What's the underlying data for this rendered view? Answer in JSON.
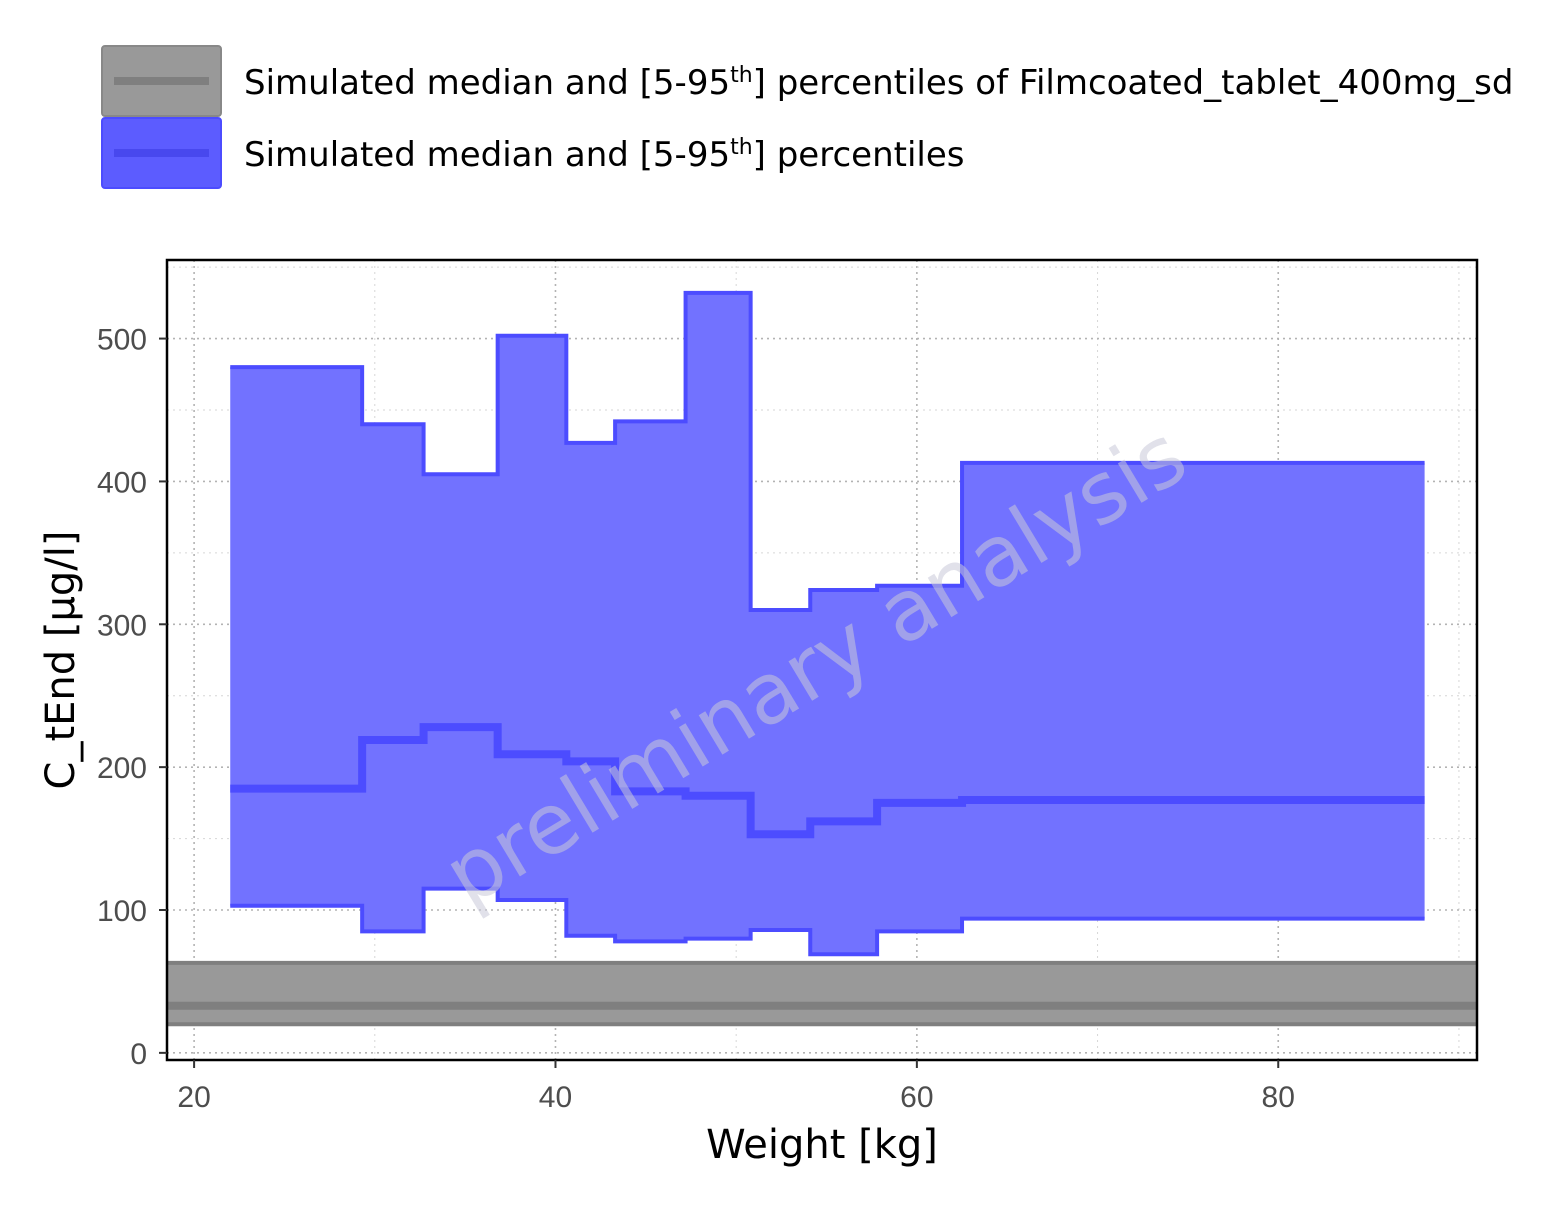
{
  "chart_data": {
    "type": "area",
    "xlabel": "Weight [kg]",
    "ylabel": "C_tEnd [µg/l]",
    "xlim": [
      18.5,
      91
    ],
    "ylim": [
      -5,
      555
    ],
    "x_ticks": [
      "20",
      "40",
      "60",
      "80"
    ],
    "y_ticks": [
      "0",
      "100",
      "200",
      "300",
      "400",
      "500"
    ],
    "grid": true,
    "legend_placement": "top",
    "watermark": "preliminary analysis",
    "legend": [
      {
        "label_parts": [
          "Simulated median and [5-95",
          "th",
          "] percentiles of Filmcoated_tablet_400mg_sd"
        ],
        "color": "#7f7f7f",
        "fill": "#999999"
      },
      {
        "label_parts": [
          "Simulated median and [5-95",
          "th",
          "] percentiles"
        ],
        "color": "#4c4cff",
        "fill": "#7272ff"
      }
    ],
    "series": [
      {
        "name": "Simulated median and [5-95th] percentiles",
        "color": "#4c4cff",
        "fill": "#7272ff",
        "bins": [
          {
            "x_start": 22.0,
            "x_end": 29.3,
            "p5": 103,
            "median": 185,
            "p95": 480
          },
          {
            "x_start": 29.3,
            "x_end": 32.7,
            "p5": 85,
            "median": 219,
            "p95": 440
          },
          {
            "x_start": 32.7,
            "x_end": 36.8,
            "p5": 115,
            "median": 228,
            "p95": 405
          },
          {
            "x_start": 36.8,
            "x_end": 40.6,
            "p5": 107,
            "median": 209,
            "p95": 502
          },
          {
            "x_start": 40.6,
            "x_end": 43.3,
            "p5": 82,
            "median": 204,
            "p95": 427
          },
          {
            "x_start": 43.3,
            "x_end": 47.2,
            "p5": 78,
            "median": 183,
            "p95": 442
          },
          {
            "x_start": 47.2,
            "x_end": 50.8,
            "p5": 80,
            "median": 180,
            "p95": 532
          },
          {
            "x_start": 50.8,
            "x_end": 54.1,
            "p5": 86,
            "median": 153,
            "p95": 310
          },
          {
            "x_start": 54.1,
            "x_end": 57.8,
            "p5": 69,
            "median": 162,
            "p95": 324
          },
          {
            "x_start": 57.8,
            "x_end": 62.5,
            "p5": 85,
            "median": 175,
            "p95": 327
          },
          {
            "x_start": 62.5,
            "x_end": 88.1,
            "p5": 94,
            "median": 177,
            "p95": 413
          }
        ]
      },
      {
        "name": "Simulated median and [5-95th] percentiles of Filmcoated_tablet_400mg_sd",
        "color": "#7f7f7f",
        "fill": "#999999",
        "reference_band": {
          "p5": 20,
          "median": 33,
          "p95": 63
        }
      }
    ]
  }
}
